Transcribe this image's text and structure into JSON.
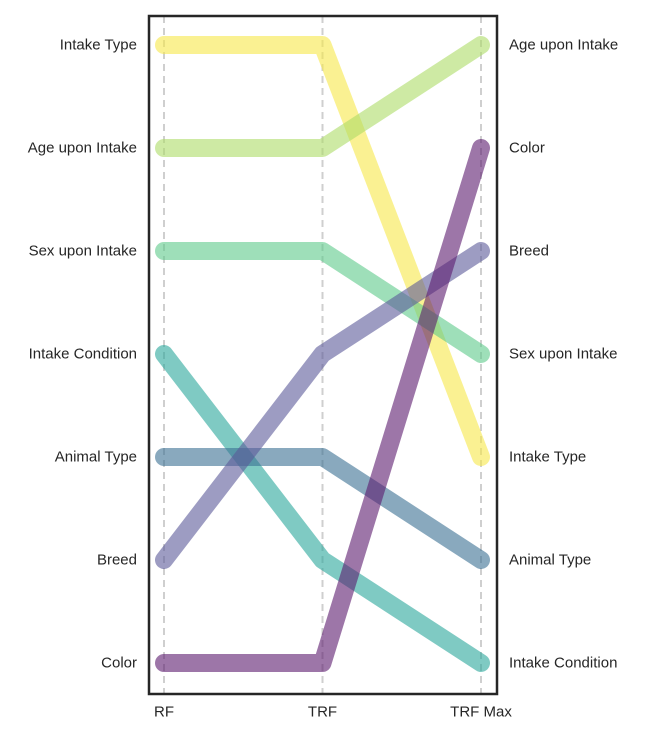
{
  "chart_data": {
    "type": "line",
    "title": "",
    "xlabel": "",
    "ylabel": "",
    "x": [
      "RF",
      "TRF",
      "TRF Max"
    ],
    "left_rank_labels": [
      "Intake Type",
      "Age upon Intake",
      "Sex upon Intake",
      "Intake Condition",
      "Animal Type",
      "Breed",
      "Color"
    ],
    "right_rank_labels": [
      "Age upon Intake",
      "Color",
      "Breed",
      "Sex upon Intake",
      "Intake Type",
      "Animal Type",
      "Intake Condition"
    ],
    "grid": true,
    "series": [
      {
        "name": "Intake Type",
        "values": [
          1,
          1,
          5
        ],
        "color": "#f6e84a"
      },
      {
        "name": "Age upon Intake",
        "values": [
          2,
          2,
          1
        ],
        "color": "#addc67"
      },
      {
        "name": "Sex upon Intake",
        "values": [
          3,
          3,
          4
        ],
        "color": "#5ec98a"
      },
      {
        "name": "Intake Condition",
        "values": [
          4,
          6,
          7
        ],
        "color": "#2aa69b"
      },
      {
        "name": "Animal Type",
        "values": [
          5,
          5,
          6
        ],
        "color": "#3b6f93"
      },
      {
        "name": "Breed",
        "values": [
          6,
          4,
          3
        ],
        "color": "#5c5a9a"
      },
      {
        "name": "Color",
        "values": [
          7,
          7,
          2
        ],
        "color": "#5b1a6e"
      }
    ]
  }
}
